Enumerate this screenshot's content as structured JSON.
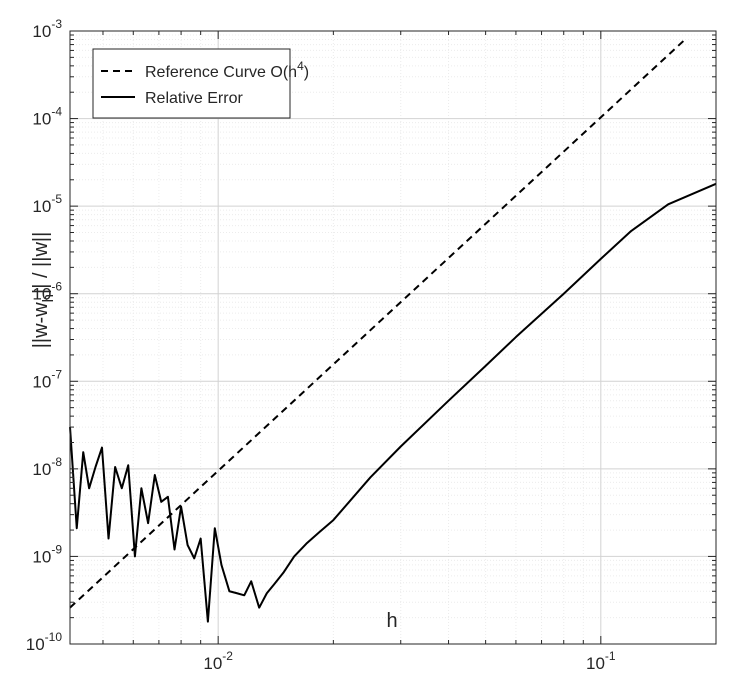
{
  "chart_data": {
    "type": "line",
    "title": "",
    "xlabel": "h",
    "ylabel": "||w-w_h|| / ||w||",
    "xscale": "log",
    "yscale": "log",
    "xlim": [
      0.0041,
      0.2
    ],
    "ylim": [
      1e-10,
      0.001
    ],
    "grid": true,
    "legend_position": "top-left",
    "x_ticks": [
      {
        "value": 0.01,
        "base": "10",
        "exponent": "-2"
      },
      {
        "value": 0.1,
        "base": "10",
        "exponent": "-1"
      }
    ],
    "y_ticks": [
      {
        "value": 1e-10,
        "base": "10",
        "exponent": "-10"
      },
      {
        "value": 1e-09,
        "base": "10",
        "exponent": "-9"
      },
      {
        "value": 1e-08,
        "base": "10",
        "exponent": "-8"
      },
      {
        "value": 1e-07,
        "base": "10",
        "exponent": "-7"
      },
      {
        "value": 1e-06,
        "base": "10",
        "exponent": "-6"
      },
      {
        "value": 1e-05,
        "base": "10",
        "exponent": "-5"
      },
      {
        "value": 0.0001,
        "base": "10",
        "exponent": "-4"
      },
      {
        "value": 0.001,
        "base": "10",
        "exponent": "-3"
      }
    ],
    "series": [
      {
        "name": "Reference Curve O(h^4)",
        "legend_main": "Reference Curve O(h",
        "legend_sup": "4",
        "legend_tail": ")",
        "style": "dashed",
        "color": "#000000",
        "x": [
          0.0041,
          0.165
        ],
        "y": [
          2.6e-10,
          0.00078
        ]
      },
      {
        "name": "Relative Error",
        "legend_main": "Relative Error",
        "legend_sup": "",
        "legend_tail": "",
        "style": "solid",
        "color": "#000000",
        "x": [
          0.0041,
          0.00427,
          0.00444,
          0.0046,
          0.00478,
          0.00497,
          0.00517,
          0.00538,
          0.0056,
          0.00582,
          0.00606,
          0.0063,
          0.00656,
          0.00683,
          0.0071,
          0.00739,
          0.00769,
          0.008,
          0.00832,
          0.00866,
          0.009,
          0.0094,
          0.0098,
          0.0102,
          0.0107,
          0.0112,
          0.0117,
          0.0122,
          0.0128,
          0.0134,
          0.014,
          0.0148,
          0.0158,
          0.017,
          0.0184,
          0.02,
          0.025,
          0.03,
          0.04,
          0.05,
          0.06,
          0.08,
          0.1,
          0.12,
          0.15,
          0.2
        ],
        "y": [
          3e-08,
          2.1e-09,
          1.55e-08,
          6e-09,
          1.05e-08,
          1.75e-08,
          1.6e-09,
          1.05e-08,
          6e-09,
          1.1e-08,
          1e-09,
          6e-09,
          2.4e-09,
          8.5e-09,
          4.2e-09,
          4.8e-09,
          1.2e-09,
          3.7e-09,
          1.35e-09,
          9.5e-10,
          1.6e-09,
          1.8e-10,
          2.1e-09,
          8e-10,
          4e-10,
          3.8e-10,
          3.6e-10,
          5.2e-10,
          2.6e-10,
          3.8e-10,
          4.8e-10,
          6.5e-10,
          1e-09,
          1.4e-09,
          1.9e-09,
          2.6e-09,
          8e-09,
          1.8e-08,
          6e-08,
          1.5e-07,
          3.2e-07,
          1e-06,
          2.5e-06,
          5.2e-06,
          1.05e-05,
          1.8e-05
        ]
      }
    ]
  }
}
